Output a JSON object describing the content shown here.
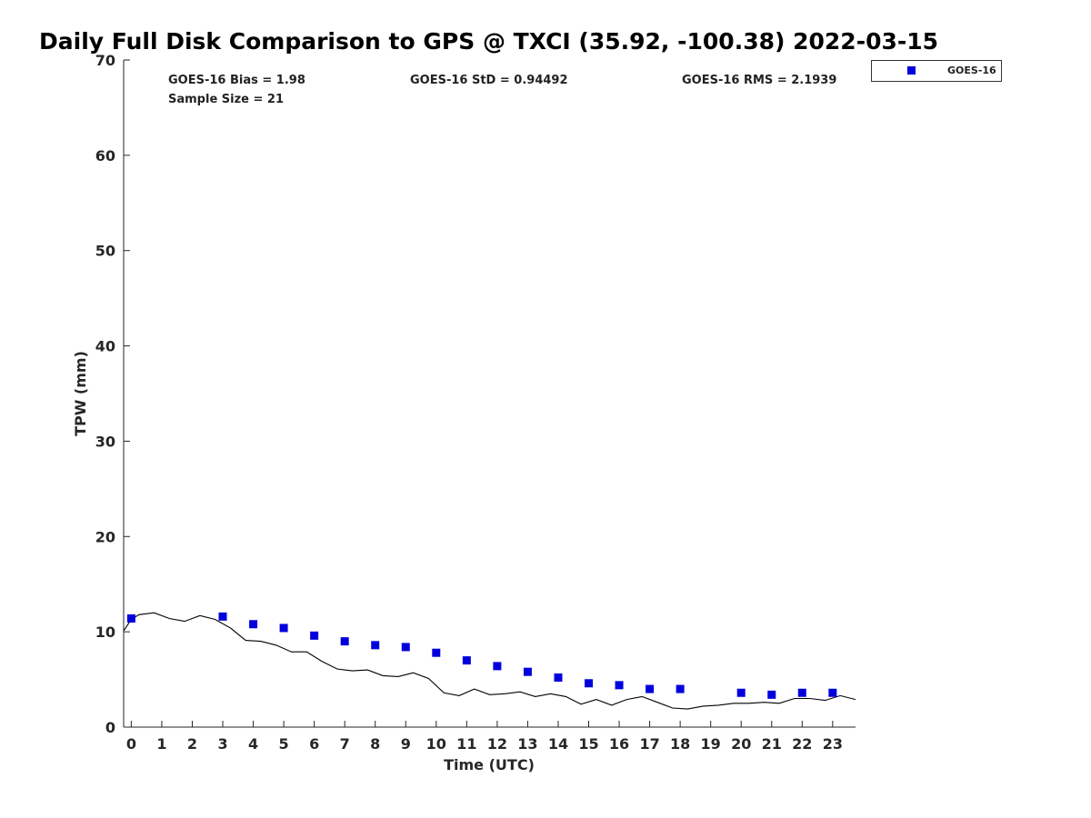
{
  "chart_data": {
    "type": "scatter",
    "title": "Daily Full Disk Comparison to GPS @ TXCI (35.92, -100.38) 2022-03-15",
    "xlabel": "Time (UTC)",
    "ylabel": "TPW (mm)",
    "xlim": [
      -0.25,
      23.75
    ],
    "ylim": [
      0,
      70
    ],
    "x_ticks": [
      0,
      1,
      2,
      3,
      4,
      5,
      6,
      7,
      8,
      9,
      10,
      11,
      12,
      13,
      14,
      15,
      16,
      17,
      18,
      19,
      20,
      21,
      22,
      23
    ],
    "y_ticks": [
      0,
      10,
      20,
      30,
      40,
      50,
      60,
      70
    ],
    "grid": false,
    "legend_position": "top-right, outside plot",
    "stats": {
      "bias": "GOES-16 Bias = 1.98",
      "std": "GOES-16 StD = 0.94492",
      "rms": "GOES-16 RMS = 2.1939",
      "sample": "Sample Size = 21"
    },
    "series": [
      {
        "name": "GOES-16",
        "marker": "square",
        "color": "#0000dd",
        "x": [
          0,
          3,
          4,
          5,
          6,
          7,
          8,
          9,
          10,
          11,
          12,
          13,
          14,
          15,
          16,
          17,
          18,
          20,
          21,
          22,
          23
        ],
        "y": [
          11.4,
          11.6,
          10.8,
          10.4,
          9.6,
          9.0,
          8.6,
          8.4,
          7.8,
          7.0,
          6.4,
          5.8,
          5.2,
          4.6,
          4.4,
          4.0,
          4.0,
          3.6,
          3.4,
          3.6,
          3.6
        ]
      },
      {
        "marker": "line",
        "color": "#000000",
        "x": [
          -0.25,
          0,
          0.25,
          0.75,
          1.25,
          1.75,
          2.25,
          2.75,
          3.25,
          3.75,
          4.25,
          4.75,
          5.25,
          5.75,
          6.25,
          6.75,
          7.25,
          7.75,
          8.25,
          8.75,
          9.25,
          9.75,
          10.25,
          10.75,
          11.25,
          11.75,
          12.25,
          12.75,
          13.25,
          13.75,
          14.25,
          14.75,
          15.25,
          15.75,
          16.25,
          16.75,
          17.25,
          17.75,
          18.25,
          18.75,
          19.25,
          19.75,
          20.25,
          20.75,
          21.25,
          21.75,
          22.25,
          22.75,
          23.25,
          23.75
        ],
        "y": [
          10.1,
          11.3,
          11.8,
          12.0,
          11.4,
          11.1,
          11.7,
          11.3,
          10.4,
          9.1,
          9.0,
          8.6,
          7.9,
          7.9,
          6.9,
          6.1,
          5.9,
          6.0,
          5.4,
          5.3,
          5.7,
          5.1,
          3.6,
          3.3,
          4.0,
          3.4,
          3.5,
          3.7,
          3.2,
          3.5,
          3.2,
          2.4,
          2.9,
          2.3,
          2.9,
          3.2,
          2.6,
          2.0,
          1.9,
          2.2,
          2.3,
          2.5,
          2.5,
          2.6,
          2.5,
          3.0,
          3.0,
          2.8,
          3.3,
          2.9
        ]
      }
    ]
  },
  "legend": {
    "label": "GOES-16"
  }
}
